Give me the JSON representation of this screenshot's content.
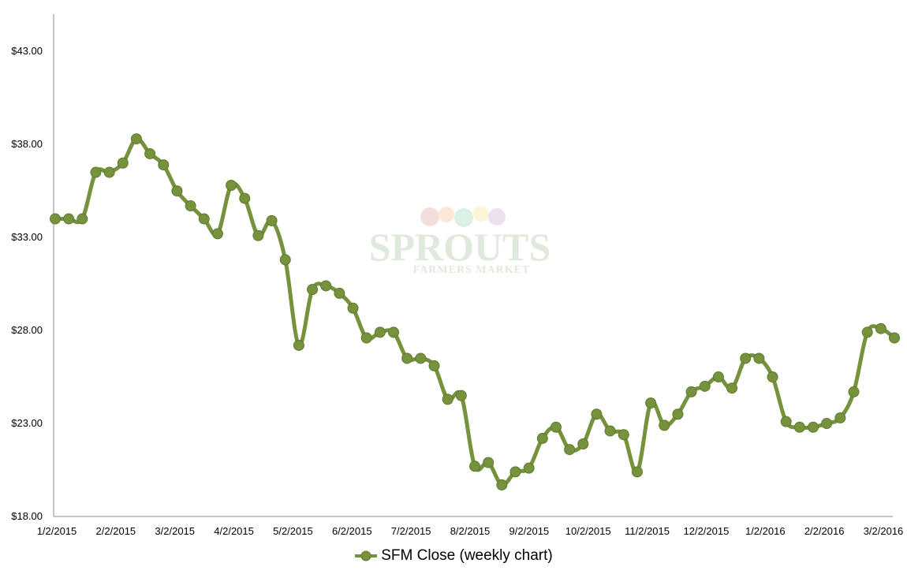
{
  "chart_data": {
    "type": "line",
    "y_tick_labels": [
      "$18.00",
      "$23.00",
      "$28.00",
      "$33.00",
      "$38.00",
      "$43.00"
    ],
    "y_ticks": [
      18,
      23,
      28,
      33,
      38,
      43
    ],
    "ylim": [
      18,
      45
    ],
    "x_tick_labels": [
      "1/2/2015",
      "2/2/2015",
      "3/2/2015",
      "4/2/2015",
      "5/2/2015",
      "6/2/2015",
      "7/2/2015",
      "8/2/2015",
      "9/2/2015",
      "10/2/2015",
      "11/2/2015",
      "12/2/2015",
      "1/2/2016",
      "2/2/2016",
      "3/2/2016"
    ],
    "grid": false,
    "legend_position": "bottom",
    "series": [
      {
        "name": "SFM Close (weekly chart)",
        "color": "#76923c",
        "values": [
          34.0,
          34.0,
          34.0,
          36.5,
          36.5,
          37.0,
          38.3,
          37.5,
          36.9,
          35.5,
          34.7,
          34.0,
          33.2,
          35.8,
          35.1,
          33.1,
          33.9,
          31.8,
          27.2,
          30.2,
          30.4,
          30.0,
          29.2,
          27.6,
          27.9,
          27.9,
          26.5,
          26.5,
          26.1,
          24.3,
          24.5,
          20.7,
          20.9,
          19.7,
          20.4,
          20.6,
          22.2,
          22.8,
          21.6,
          21.9,
          23.5,
          22.6,
          22.4,
          20.4,
          24.1,
          22.9,
          23.5,
          24.7,
          25.0,
          25.5,
          24.9,
          26.5,
          26.5,
          25.5,
          23.1,
          22.8,
          22.8,
          23.0,
          23.3,
          24.7,
          27.9,
          28.1,
          27.6
        ]
      }
    ]
  },
  "watermark": {
    "brand": "SPROUTS",
    "tagline": "FARMERS MARKET"
  }
}
